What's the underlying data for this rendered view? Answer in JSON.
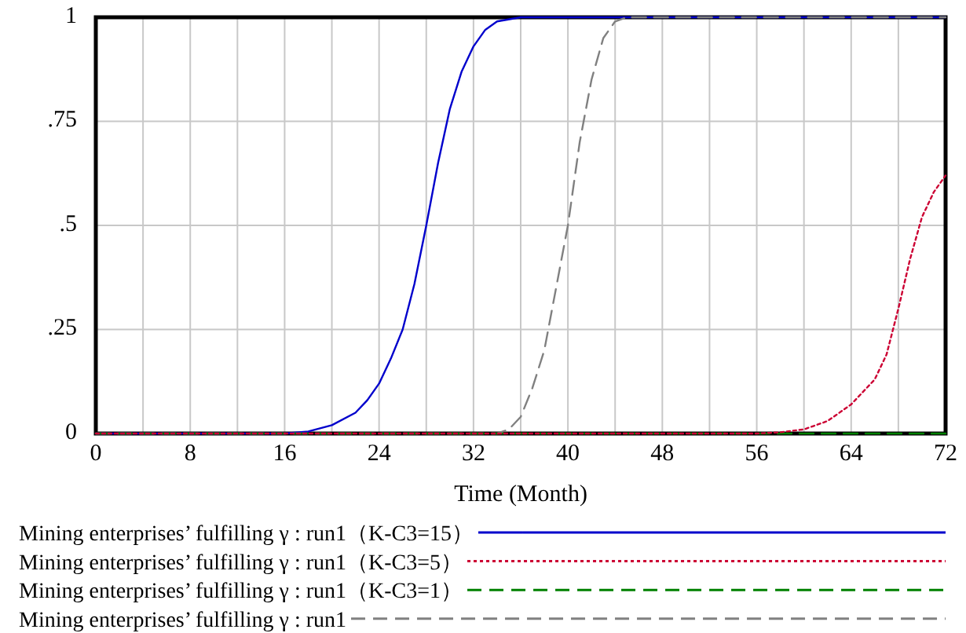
{
  "chart_data": {
    "type": "line",
    "xlabel": "Time (Month)",
    "xlim": [
      0,
      72
    ],
    "xticks": [
      0,
      {
        "value": 4,
        "label": null
      },
      8,
      {
        "value": 12,
        "label": null
      },
      16,
      {
        "value": 20,
        "label": null
      },
      24,
      {
        "value": 28,
        "label": null
      },
      32,
      {
        "value": 36,
        "label": null
      },
      40,
      {
        "value": 44,
        "label": null
      },
      48,
      {
        "value": 52,
        "label": null
      },
      56,
      {
        "value": 60,
        "label": null
      },
      64,
      {
        "value": 68,
        "label": null
      },
      72
    ],
    "ylim": [
      0,
      1
    ],
    "yticks": [
      0,
      {
        "value": 0.25,
        "label": ".25"
      },
      {
        "value": 0.5,
        "label": ".5"
      },
      {
        "value": 0.75,
        "label": ".75"
      },
      1
    ],
    "grid": true,
    "legend": "bottom",
    "series": [
      {
        "name": "Mining enterprises’ fulfilling γ : run1（K-C3=15）",
        "color": "#0000cc",
        "line_style": "solid",
        "x": [
          0,
          16,
          18,
          20,
          22,
          23,
          24,
          25,
          26,
          27,
          28,
          29,
          30,
          31,
          32,
          33,
          34,
          36,
          72
        ],
        "values": [
          0,
          0,
          0.005,
          0.02,
          0.05,
          0.08,
          0.12,
          0.18,
          0.25,
          0.36,
          0.5,
          0.65,
          0.78,
          0.87,
          0.93,
          0.97,
          0.99,
          1,
          1
        ]
      },
      {
        "name": "Mining enterprises’ fulfilling γ : run1（K-C3=5）",
        "color": "#cc0033",
        "line_style": "dotted",
        "x": [
          0,
          56,
          58,
          60,
          62,
          64,
          66,
          67,
          68,
          69,
          70,
          71,
          72
        ],
        "values": [
          0,
          0,
          0.003,
          0.01,
          0.03,
          0.07,
          0.13,
          0.19,
          0.3,
          0.42,
          0.52,
          0.58,
          0.62
        ]
      },
      {
        "name": "Mining enterprises’ fulfilling γ : run1（K-C3=1）",
        "color": "#008000",
        "line_style": "dashed",
        "x": [
          0,
          72
        ],
        "values": [
          0,
          0
        ]
      },
      {
        "name": "Mining enterprises’ fulfilling γ : run1",
        "color": "#808080",
        "line_style": "dashed",
        "x": [
          0,
          34,
          35,
          36,
          37,
          38,
          39,
          40,
          41,
          42,
          43,
          44,
          45,
          72
        ],
        "values": [
          0,
          0,
          0.01,
          0.04,
          0.11,
          0.2,
          0.35,
          0.5,
          0.7,
          0.85,
          0.95,
          0.99,
          1,
          1
        ]
      }
    ]
  }
}
